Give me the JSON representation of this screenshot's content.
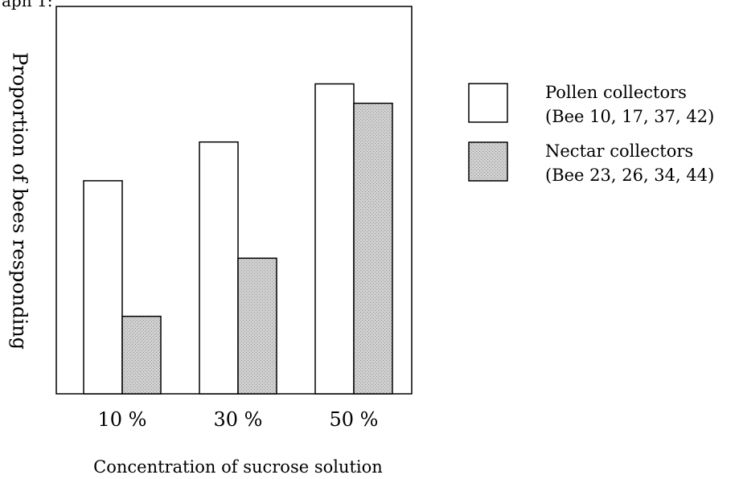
{
  "page_header": "aph 1:",
  "chart_data": {
    "type": "bar",
    "title": "",
    "xlabel": "Concentration of sucrose solution",
    "ylabel": "Proportion of bees responding",
    "categories": [
      "10 %",
      "30 %",
      "50 %"
    ],
    "ylim": [
      0,
      100
    ],
    "grid": false,
    "legend_position": "right",
    "series": [
      {
        "name": "Pollen collectors",
        "detail": "(Bee 10, 17, 37, 42)",
        "values": [
          55,
          65,
          80
        ],
        "color": "#ffffff"
      },
      {
        "name": "Nectar collectors",
        "detail": "(Bee 23, 26, 34, 44)",
        "values": [
          20,
          35,
          75
        ],
        "color": "#c8c8c8"
      }
    ]
  }
}
